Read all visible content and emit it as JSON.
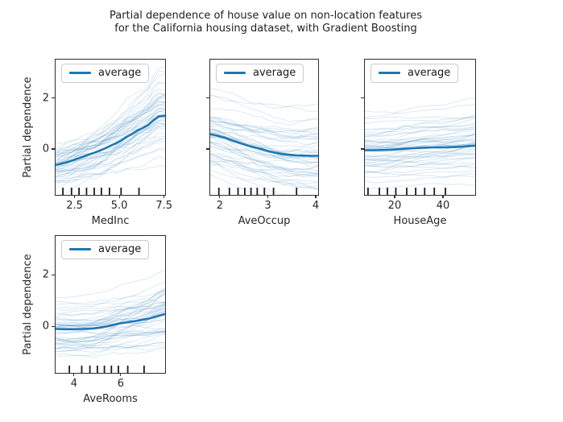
{
  "figure": {
    "title_line1": "Partial dependence of house value on non-location features",
    "title_line2": "for the California housing dataset, with Gradient Boosting",
    "ylabel": "Partial dependence",
    "legend_label": "average"
  },
  "colors": {
    "average_line": "#1f77b4",
    "ice_line_rgb": "31,119,180",
    "spine": "#2e2e2e",
    "decile_marks": "#1c1c1c",
    "text": "#262626"
  },
  "chart_data": [
    {
      "type": "line",
      "feature": "MedInc",
      "xlabel": "MedInc",
      "xlim": [
        1.44,
        7.56
      ],
      "ylim": [
        -1.8,
        3.5
      ],
      "grid": false,
      "legend_position": "upper left",
      "xticks": [
        {
          "v": 2.5,
          "label": "2.5"
        },
        {
          "v": 5.0,
          "label": "5.0"
        },
        {
          "v": 7.5,
          "label": "7.5"
        }
      ],
      "yticks": [
        {
          "v": 0,
          "label": "0"
        },
        {
          "v": 2,
          "label": "2"
        }
      ],
      "deciles": [
        1.85,
        2.33,
        2.75,
        3.17,
        3.6,
        4.0,
        4.45,
        5.1,
        6.1
      ],
      "average": {
        "x": [
          1.44,
          1.8,
          2.1,
          2.4,
          2.7,
          3.0,
          3.3,
          3.6,
          3.9,
          4.2,
          4.5,
          4.8,
          5.1,
          5.4,
          5.7,
          6.0,
          6.3,
          6.6,
          6.9,
          7.2,
          7.56
        ],
        "y": [
          -0.63,
          -0.57,
          -0.52,
          -0.45,
          -0.37,
          -0.3,
          -0.22,
          -0.15,
          -0.07,
          0.02,
          0.12,
          0.22,
          0.33,
          0.47,
          0.58,
          0.72,
          0.82,
          0.93,
          1.12,
          1.28,
          1.3
        ]
      },
      "ice": {
        "count": 50,
        "seed": 42,
        "offset_sd": 0.62,
        "gain_sd": 0.38,
        "noise_sd": 0.055,
        "alpha": 0.16
      }
    },
    {
      "type": "line",
      "feature": "AveOccup",
      "xlabel": "AveOccup",
      "xlim": [
        1.8,
        4.05
      ],
      "ylim": [
        -1.8,
        3.5
      ],
      "grid": false,
      "legend_position": "upper left",
      "xticks": [
        {
          "v": 2,
          "label": "2"
        },
        {
          "v": 3,
          "label": "3"
        },
        {
          "v": 4,
          "label": "4"
        }
      ],
      "yticks": [
        {
          "v": 0,
          "label": "0"
        },
        {
          "v": 2,
          "label": "2"
        }
      ],
      "deciles": [
        1.98,
        2.2,
        2.38,
        2.52,
        2.65,
        2.78,
        2.93,
        3.12,
        3.6
      ],
      "average": {
        "x": [
          1.8,
          1.95,
          2.1,
          2.25,
          2.4,
          2.55,
          2.7,
          2.85,
          3.0,
          3.15,
          3.3,
          3.45,
          3.6,
          3.75,
          3.9,
          4.05
        ],
        "y": [
          0.58,
          0.52,
          0.44,
          0.34,
          0.24,
          0.15,
          0.07,
          0.0,
          -0.08,
          -0.15,
          -0.2,
          -0.23,
          -0.25,
          -0.26,
          -0.27,
          -0.27
        ]
      },
      "ice": {
        "count": 50,
        "seed": 7,
        "offset_sd": 0.68,
        "gain_sd": 0.45,
        "noise_sd": 0.055,
        "alpha": 0.16
      }
    },
    {
      "type": "line",
      "feature": "HouseAge",
      "xlabel": "HouseAge",
      "xlim": [
        7.7,
        53.3
      ],
      "ylim": [
        -1.8,
        3.5
      ],
      "grid": false,
      "legend_position": "upper left",
      "xticks": [
        {
          "v": 20,
          "label": "20"
        },
        {
          "v": 40,
          "label": "40"
        }
      ],
      "yticks": [
        {
          "v": 0,
          "label": "0"
        },
        {
          "v": 2,
          "label": "2"
        }
      ],
      "deciles": [
        9,
        13.7,
        17,
        20.5,
        25,
        28.7,
        32.4,
        36.4,
        41
      ],
      "average": {
        "x": [
          7.7,
          12,
          16,
          20,
          24,
          28,
          32,
          36,
          40,
          44,
          48,
          53.3
        ],
        "y": [
          -0.05,
          -0.05,
          -0.04,
          -0.02,
          0.01,
          0.03,
          0.05,
          0.06,
          0.06,
          0.07,
          0.09,
          0.13
        ]
      },
      "ice": {
        "count": 50,
        "seed": 13,
        "offset_sd": 0.7,
        "gain_sd": 1.4,
        "noise_sd": 0.04,
        "alpha": 0.16
      }
    },
    {
      "type": "line",
      "feature": "AveRooms",
      "xlabel": "AveRooms",
      "xlim": [
        3.21,
        7.9
      ],
      "ylim": [
        -1.8,
        3.5
      ],
      "grid": false,
      "legend_position": "upper left",
      "xticks": [
        {
          "v": 4,
          "label": "4"
        },
        {
          "v": 6,
          "label": "6"
        }
      ],
      "yticks": [
        {
          "v": 0,
          "label": "0"
        },
        {
          "v": 2,
          "label": "2"
        }
      ],
      "deciles": [
        3.8,
        4.33,
        4.68,
        5.0,
        5.3,
        5.6,
        5.9,
        6.3,
        7.0
      ],
      "average": {
        "x": [
          3.21,
          3.6,
          4.0,
          4.4,
          4.8,
          5.1,
          5.4,
          5.7,
          6.0,
          6.3,
          6.6,
          6.9,
          7.2,
          7.5,
          7.9
        ],
        "y": [
          -0.1,
          -0.11,
          -0.11,
          -0.1,
          -0.08,
          -0.05,
          0.0,
          0.06,
          0.12,
          0.16,
          0.2,
          0.25,
          0.3,
          0.38,
          0.48
        ]
      },
      "ice": {
        "count": 50,
        "seed": 99,
        "offset_sd": 0.62,
        "gain_sd": 0.9,
        "noise_sd": 0.045,
        "alpha": 0.16
      }
    }
  ]
}
